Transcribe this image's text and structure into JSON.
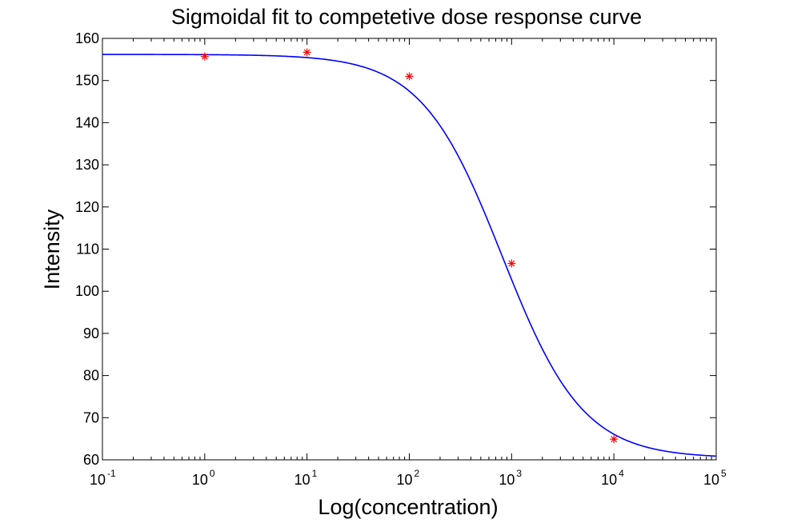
{
  "chart_data": {
    "type": "scatter",
    "title": "Sigmoidal fit to competetive dose response curve",
    "xlabel": "Log(concentration)",
    "ylabel": "Intensity",
    "x_scale": "log",
    "xlim": [
      0.1,
      100000
    ],
    "ylim": [
      60,
      160
    ],
    "x_ticks": [
      {
        "base": "10",
        "exp": "-1",
        "value": 0.1
      },
      {
        "base": "10",
        "exp": "0",
        "value": 1
      },
      {
        "base": "10",
        "exp": "1",
        "value": 10
      },
      {
        "base": "10",
        "exp": "2",
        "value": 100
      },
      {
        "base": "10",
        "exp": "3",
        "value": 1000
      },
      {
        "base": "10",
        "exp": "4",
        "value": 10000
      },
      {
        "base": "10",
        "exp": "5",
        "value": 100000
      }
    ],
    "y_ticks": [
      "60",
      "70",
      "80",
      "90",
      "100",
      "110",
      "120",
      "130",
      "140",
      "150",
      "160"
    ],
    "grid": false,
    "series": [
      {
        "kind": "points",
        "marker": "asterisk",
        "color": "#ff0000",
        "x": [
          1,
          10,
          100,
          1000,
          10000
        ],
        "y": [
          155.7,
          156.7,
          151.0,
          106.6,
          64.9
        ]
      },
      {
        "kind": "fit",
        "color": "#0000ff",
        "model": "4PL",
        "top": 156.2,
        "bottom": 60.4,
        "ec50": 810,
        "hill": 1.1
      }
    ]
  }
}
